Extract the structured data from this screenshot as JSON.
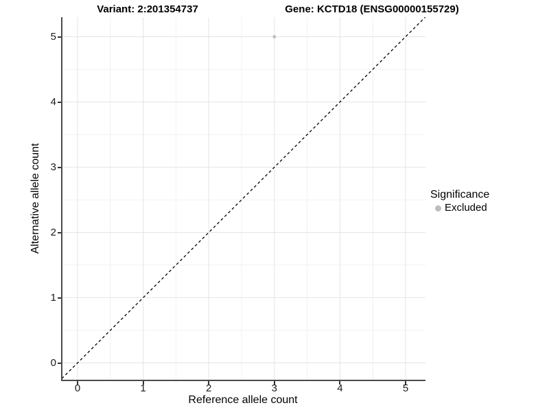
{
  "titles": {
    "variant": "Variant: 2:201354737",
    "gene": "Gene: KCTD18 (ENSG00000155729)"
  },
  "legend": {
    "title": "Significance",
    "items": [
      {
        "label": "Excluded",
        "marker_color": "#bdbdbd"
      }
    ]
  },
  "chart_data": {
    "type": "scatter",
    "title": "Variant: 2:201354737",
    "subtitle": "Gene: KCTD18 (ENSG00000155729)",
    "xlabel": "Reference allele count",
    "ylabel": "Alternative allele count",
    "xlim": [
      -0.24,
      5.31
    ],
    "ylim": [
      -0.26,
      5.3
    ],
    "x_ticks": [
      0,
      1,
      2,
      3,
      4,
      5
    ],
    "y_ticks": [
      0,
      1,
      2,
      3,
      4,
      5
    ],
    "minor_grid_step": 0.5,
    "grid": "major and minor light gray on white",
    "legend_position": "right",
    "series": [
      {
        "name": "Excluded",
        "color": "#bdbdbd",
        "points": [
          [
            3,
            5
          ]
        ]
      }
    ],
    "reference_line": {
      "equation": "y = x",
      "style": "dashed",
      "color": "#000000"
    }
  },
  "style": {
    "background": "#ffffff",
    "grid_major": "#e4e4e4",
    "grid_minor": "#f0f0f0",
    "axis_line": "#4a4a4a",
    "tick_color": "#333333",
    "point_color": "#bdbdbd",
    "dash_color": "#000000"
  }
}
